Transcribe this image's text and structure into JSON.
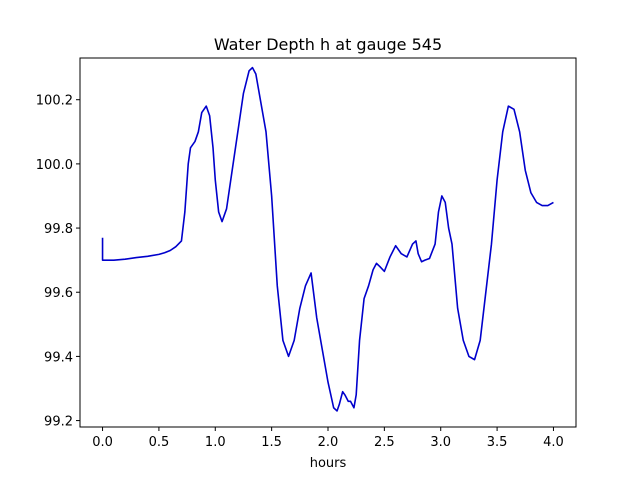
{
  "chart_data": {
    "type": "line",
    "title": "Water Depth h at gauge 545",
    "xlabel": "hours",
    "ylabel": "",
    "xlim": [
      -0.2,
      4.2
    ],
    "ylim": [
      99.18,
      100.33
    ],
    "xticks": [
      0.0,
      0.5,
      1.0,
      1.5,
      2.0,
      2.5,
      3.0,
      3.5,
      4.0
    ],
    "xtick_labels": [
      "0.0",
      "0.5",
      "1.0",
      "1.5",
      "2.0",
      "2.5",
      "3.0",
      "3.5",
      "4.0"
    ],
    "yticks": [
      99.2,
      99.4,
      99.6,
      99.8,
      100.0,
      100.2
    ],
    "ytick_labels": [
      "99.2",
      "99.4",
      "99.6",
      "99.8",
      "100.0",
      "100.2"
    ],
    "grid": false,
    "series": [
      {
        "color": "#0000cc",
        "x": [
          0.0,
          0.0,
          0.1,
          0.2,
          0.3,
          0.4,
          0.5,
          0.55,
          0.6,
          0.65,
          0.7,
          0.73,
          0.76,
          0.78,
          0.82,
          0.85,
          0.88,
          0.92,
          0.95,
          0.98,
          1.0,
          1.03,
          1.06,
          1.1,
          1.15,
          1.2,
          1.25,
          1.3,
          1.33,
          1.36,
          1.4,
          1.45,
          1.5,
          1.55,
          1.6,
          1.65,
          1.7,
          1.75,
          1.8,
          1.85,
          1.9,
          1.95,
          2.0,
          2.05,
          2.08,
          2.1,
          2.13,
          2.15,
          2.18,
          2.2,
          2.23,
          2.25,
          2.28,
          2.32,
          2.36,
          2.4,
          2.43,
          2.46,
          2.5,
          2.55,
          2.6,
          2.65,
          2.7,
          2.75,
          2.78,
          2.8,
          2.83,
          2.86,
          2.9,
          2.95,
          2.98,
          3.01,
          3.04,
          3.07,
          3.1,
          3.15,
          3.2,
          3.25,
          3.3,
          3.35,
          3.4,
          3.45,
          3.5,
          3.55,
          3.6,
          3.65,
          3.7,
          3.75,
          3.8,
          3.85,
          3.9,
          3.95,
          4.0
        ],
        "y": [
          99.77,
          99.7,
          99.7,
          99.703,
          99.708,
          99.712,
          99.718,
          99.723,
          99.73,
          99.742,
          99.76,
          99.85,
          100.0,
          100.05,
          100.07,
          100.1,
          100.16,
          100.18,
          100.15,
          100.05,
          99.95,
          99.85,
          99.82,
          99.86,
          99.98,
          100.1,
          100.22,
          100.29,
          100.3,
          100.28,
          100.2,
          100.1,
          99.9,
          99.62,
          99.45,
          99.4,
          99.45,
          99.55,
          99.62,
          99.66,
          99.52,
          99.42,
          99.32,
          99.24,
          99.23,
          99.25,
          99.29,
          99.28,
          99.26,
          99.26,
          99.24,
          99.28,
          99.45,
          99.58,
          99.62,
          99.67,
          99.69,
          99.68,
          99.665,
          99.71,
          99.745,
          99.72,
          99.71,
          99.75,
          99.76,
          99.72,
          99.695,
          99.7,
          99.705,
          99.75,
          99.85,
          99.9,
          99.88,
          99.8,
          99.75,
          99.55,
          99.45,
          99.4,
          99.39,
          99.45,
          99.6,
          99.75,
          99.95,
          100.1,
          100.18,
          100.17,
          100.1,
          99.98,
          99.91,
          99.88,
          99.87,
          99.87,
          99.88
        ]
      }
    ]
  }
}
